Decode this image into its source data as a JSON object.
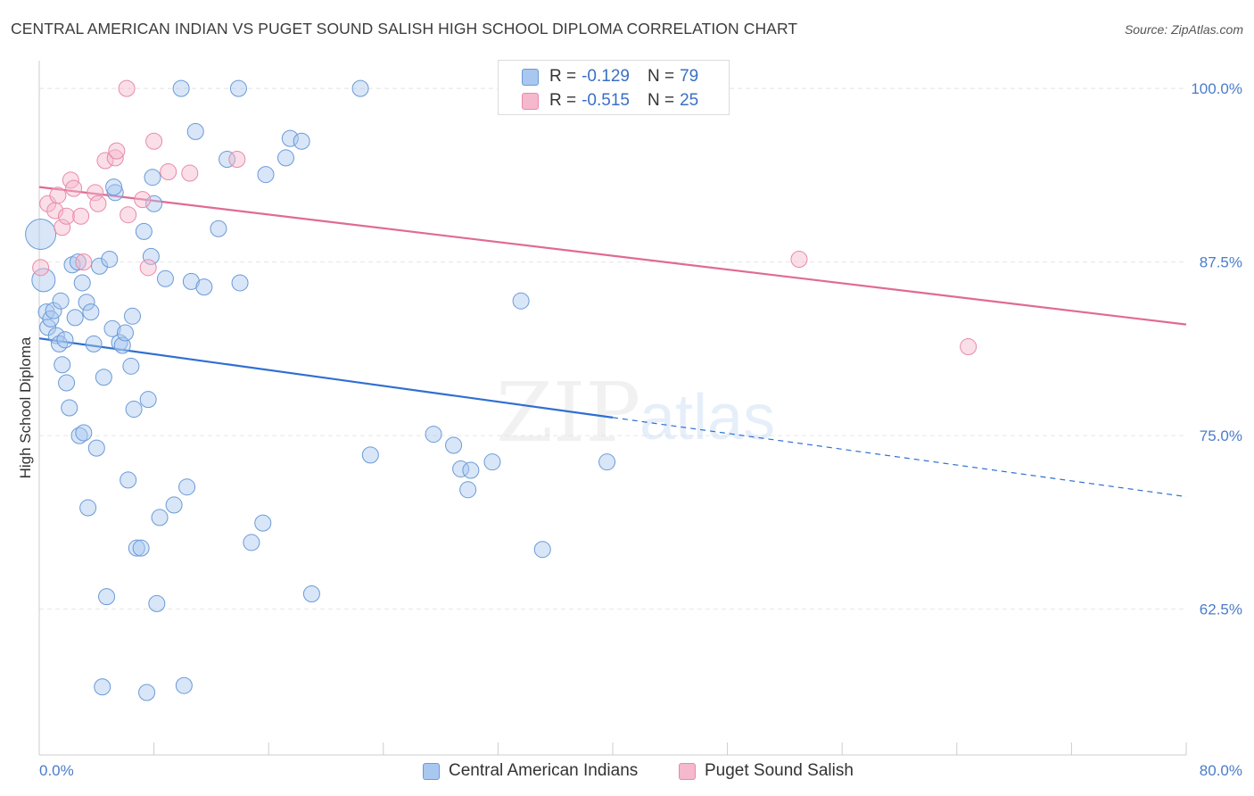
{
  "header": {
    "title": "CENTRAL AMERICAN INDIAN VS PUGET SOUND SALISH HIGH SCHOOL DIPLOMA CORRELATION CHART",
    "source": "Source: ZipAtlas.com"
  },
  "watermark": {
    "zip": "ZIP",
    "atlas": "atlas"
  },
  "legend": {
    "rows": [
      {
        "r_label": "R =",
        "r_value": "-0.129",
        "n_label": "N =",
        "n_value": "79",
        "color": "#a9c8f0"
      },
      {
        "r_label": "R =",
        "r_value": "-0.515",
        "n_label": "N =",
        "n_value": "25",
        "color": "#f5b8cc"
      }
    ]
  },
  "chart_data": {
    "type": "scatter",
    "title": "CENTRAL AMERICAN INDIAN VS PUGET SOUND SALISH HIGH SCHOOL DIPLOMA CORRELATION CHART",
    "xlabel": "",
    "ylabel": "High School Diploma",
    "xlim": [
      0,
      80
    ],
    "ylim": [
      52,
      102
    ],
    "x_tick_labels": [
      "0.0%",
      "80.0%"
    ],
    "y_ticks": [
      62.5,
      75.0,
      87.5,
      100.0
    ],
    "y_tick_labels": [
      "62.5%",
      "75.0%",
      "87.5%",
      "100.0%"
    ],
    "grid": true,
    "legend_position": "top-center",
    "series": [
      {
        "name": "Central American Indians",
        "color": "#a9c8f0",
        "stroke": "#6a9ad8",
        "trend": {
          "x": [
            0,
            40,
            80
          ],
          "y": [
            82.0,
            76.3,
            70.6
          ],
          "solid_until": 40
        },
        "points": [
          [
            0.1,
            89.5
          ],
          [
            0.3,
            86.2
          ],
          [
            0.5,
            83.9
          ],
          [
            0.6,
            82.8
          ],
          [
            0.8,
            83.4
          ],
          [
            1.0,
            84.0
          ],
          [
            1.2,
            82.2
          ],
          [
            1.4,
            81.6
          ],
          [
            1.5,
            84.7
          ],
          [
            1.6,
            80.1
          ],
          [
            1.8,
            81.9
          ],
          [
            1.9,
            78.8
          ],
          [
            2.1,
            77.0
          ],
          [
            2.3,
            87.3
          ],
          [
            2.5,
            83.5
          ],
          [
            2.7,
            87.5
          ],
          [
            2.8,
            75.0
          ],
          [
            3.0,
            86.0
          ],
          [
            3.1,
            75.2
          ],
          [
            3.3,
            84.6
          ],
          [
            3.4,
            69.8
          ],
          [
            3.6,
            83.9
          ],
          [
            3.8,
            81.6
          ],
          [
            4.0,
            74.1
          ],
          [
            4.2,
            87.2
          ],
          [
            4.5,
            79.2
          ],
          [
            4.7,
            63.4
          ],
          [
            4.9,
            87.7
          ],
          [
            5.1,
            82.7
          ],
          [
            5.3,
            92.5
          ],
          [
            5.2,
            92.9
          ],
          [
            5.6,
            81.7
          ],
          [
            5.8,
            81.5
          ],
          [
            6.0,
            82.4
          ],
          [
            6.2,
            71.8
          ],
          [
            6.4,
            80.0
          ],
          [
            6.5,
            83.6
          ],
          [
            6.6,
            76.9
          ],
          [
            6.8,
            66.9
          ],
          [
            7.1,
            66.9
          ],
          [
            7.3,
            89.7
          ],
          [
            7.6,
            77.6
          ],
          [
            7.8,
            87.9
          ],
          [
            7.9,
            93.6
          ],
          [
            8.0,
            91.7
          ],
          [
            8.2,
            62.9
          ],
          [
            8.4,
            69.1
          ],
          [
            8.8,
            86.3
          ],
          [
            9.4,
            70.0
          ],
          [
            9.9,
            100.0
          ],
          [
            10.3,
            71.3
          ],
          [
            10.6,
            86.1
          ],
          [
            10.9,
            96.9
          ],
          [
            11.5,
            85.7
          ],
          [
            12.5,
            89.9
          ],
          [
            13.1,
            94.9
          ],
          [
            13.9,
            100.0
          ],
          [
            14.0,
            86.0
          ],
          [
            14.8,
            67.3
          ],
          [
            15.6,
            68.7
          ],
          [
            15.8,
            93.8
          ],
          [
            17.2,
            95.0
          ],
          [
            17.5,
            96.4
          ],
          [
            18.3,
            96.2
          ],
          [
            19.0,
            63.6
          ],
          [
            22.4,
            100.0
          ],
          [
            23.1,
            73.6
          ],
          [
            27.5,
            75.1
          ],
          [
            28.9,
            74.3
          ],
          [
            29.4,
            72.6
          ],
          [
            29.9,
            71.1
          ],
          [
            30.1,
            72.5
          ],
          [
            31.6,
            73.1
          ],
          [
            33.6,
            84.7
          ],
          [
            35.1,
            66.8
          ],
          [
            39.6,
            73.1
          ],
          [
            4.4,
            56.9
          ],
          [
            7.5,
            56.5
          ],
          [
            10.1,
            57.0
          ]
        ]
      },
      {
        "name": "Puget Sound Salish",
        "color": "#f5b8cc",
        "stroke": "#e88aa8",
        "trend": {
          "x": [
            0,
            80
          ],
          "y": [
            92.9,
            83.0
          ],
          "solid_until": 80
        },
        "points": [
          [
            0.1,
            87.1
          ],
          [
            0.6,
            91.7
          ],
          [
            1.1,
            91.2
          ],
          [
            1.3,
            92.3
          ],
          [
            1.6,
            90.0
          ],
          [
            1.9,
            90.8
          ],
          [
            2.2,
            93.4
          ],
          [
            2.4,
            92.8
          ],
          [
            2.9,
            90.8
          ],
          [
            3.1,
            87.5
          ],
          [
            3.9,
            92.5
          ],
          [
            4.1,
            91.7
          ],
          [
            4.6,
            94.8
          ],
          [
            5.3,
            95.0
          ],
          [
            5.4,
            95.5
          ],
          [
            6.1,
            100.0
          ],
          [
            6.2,
            90.9
          ],
          [
            7.2,
            92.0
          ],
          [
            7.6,
            87.1
          ],
          [
            8.0,
            96.2
          ],
          [
            9.0,
            94.0
          ],
          [
            10.5,
            93.9
          ],
          [
            13.8,
            94.9
          ],
          [
            53.0,
            87.7
          ],
          [
            64.8,
            81.4
          ]
        ]
      }
    ]
  }
}
